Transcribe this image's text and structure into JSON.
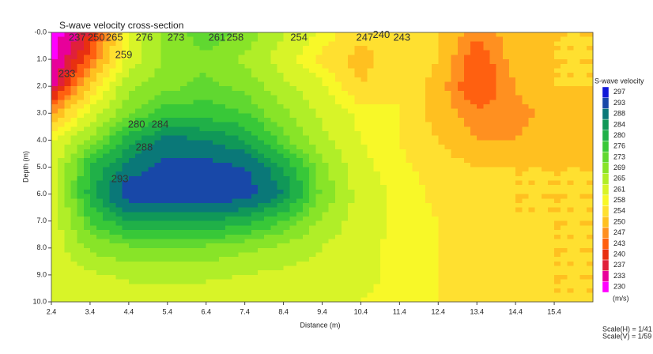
{
  "chart_data": {
    "type": "contour",
    "title": "S-wave velocity cross-section",
    "x_label": "Distance (m)",
    "y_label": "Depth (m)",
    "colorbar_title": "S-wave velocity",
    "unit_label": "(m/s)",
    "scale_h": "Scale(H) = 1/41",
    "scale_v": "Scale(V) = 1/59",
    "xlim": [
      2.4,
      16.4
    ],
    "ylim": [
      0,
      10
    ],
    "y_inverted": true,
    "xticks": [
      2.4,
      3.4,
      4.4,
      5.4,
      6.4,
      7.4,
      8.4,
      9.4,
      10.4,
      11.4,
      12.4,
      13.4,
      14.4,
      15.4
    ],
    "yticks": [
      {
        "value": 0,
        "label": "-0.0"
      },
      {
        "value": 1,
        "label": "1.0"
      },
      {
        "value": 2,
        "label": "2.0"
      },
      {
        "value": 3,
        "label": "3.0"
      },
      {
        "value": 4,
        "label": "4.0"
      },
      {
        "value": 5,
        "label": "5.0"
      },
      {
        "value": 6,
        "label": "6.0"
      },
      {
        "value": 7,
        "label": "7.0"
      },
      {
        "value": 8,
        "label": "8.0"
      },
      {
        "value": 9,
        "label": "9.0"
      },
      {
        "value": 10,
        "label": "10.0"
      }
    ],
    "x": [
      2.4,
      3.4,
      4.4,
      5.4,
      6.4,
      7.4,
      8.4,
      9.4,
      10.4,
      11.4,
      12.4,
      13.4,
      14.4,
      15.4,
      16.4
    ],
    "y": [
      0,
      1,
      2,
      3,
      4,
      5,
      6,
      7,
      8,
      9,
      10
    ],
    "z": [
      [
        230,
        240,
        262,
        270,
        276,
        272,
        265,
        260,
        255,
        256,
        254,
        248,
        252,
        254,
        254
      ],
      [
        232,
        245,
        262,
        270,
        272,
        268,
        263,
        257,
        252,
        258,
        254,
        244,
        252,
        254,
        254
      ],
      [
        235,
        255,
        268,
        272,
        274,
        272,
        266,
        262,
        254,
        258,
        252,
        243,
        250,
        254,
        254
      ],
      [
        250,
        262,
        272,
        278,
        278,
        276,
        270,
        264,
        260,
        258,
        252,
        248,
        249,
        251,
        254
      ],
      [
        260,
        270,
        282,
        290,
        288,
        284,
        274,
        266,
        261,
        258,
        254,
        250,
        250,
        252,
        254
      ],
      [
        262,
        280,
        290,
        295,
        295,
        293,
        284,
        270,
        262,
        259,
        256,
        254,
        254,
        254,
        254
      ],
      [
        262,
        282,
        297,
        297,
        297,
        296,
        288,
        272,
        263,
        260,
        257,
        255,
        254,
        254,
        254
      ],
      [
        262,
        276,
        284,
        284,
        284,
        282,
        276,
        268,
        263,
        260,
        258,
        256,
        254,
        254,
        254
      ],
      [
        262,
        270,
        272,
        272,
        272,
        270,
        268,
        265,
        262,
        260,
        258,
        257,
        255,
        254,
        254
      ],
      [
        262,
        264,
        266,
        266,
        266,
        265,
        264,
        263,
        262,
        260,
        258,
        257,
        255,
        254,
        254
      ],
      [
        262,
        262,
        262,
        262,
        262,
        262,
        262,
        262,
        261,
        260,
        258,
        257,
        255,
        254,
        254
      ]
    ],
    "levels": [
      230,
      233,
      237,
      240,
      243,
      247,
      250,
      254,
      258,
      261,
      265,
      269,
      273,
      276,
      280,
      284,
      288,
      293,
      297
    ],
    "colors": [
      "#ff00ff",
      "#e8009a",
      "#e0203a",
      "#e83010",
      "#ff6010",
      "#ff9020",
      "#ffc020",
      "#ffe030",
      "#f8f828",
      "#d8f428",
      "#b0ee28",
      "#88e428",
      "#60d830",
      "#38c838",
      "#20b048",
      "#109858",
      "#0a7878",
      "#1848a8",
      "#1018d8"
    ],
    "annotations": [
      {
        "text": "237",
        "x": 3.07,
        "y": 0.2
      },
      {
        "text": "250",
        "x": 3.56,
        "y": 0.2
      },
      {
        "text": "265",
        "x": 4.03,
        "y": 0.2
      },
      {
        "text": "276",
        "x": 4.8,
        "y": 0.2
      },
      {
        "text": "273",
        "x": 5.62,
        "y": 0.2
      },
      {
        "text": "261",
        "x": 6.68,
        "y": 0.2
      },
      {
        "text": "258",
        "x": 7.15,
        "y": 0.2
      },
      {
        "text": "254",
        "x": 8.8,
        "y": 0.2
      },
      {
        "text": "247",
        "x": 10.5,
        "y": 0.2
      },
      {
        "text": "240",
        "x": 10.93,
        "y": 0.1
      },
      {
        "text": "243",
        "x": 11.46,
        "y": 0.2
      },
      {
        "text": "259",
        "x": 4.27,
        "y": 0.85
      },
      {
        "text": "233",
        "x": 2.8,
        "y": 1.55
      },
      {
        "text": "280",
        "x": 4.6,
        "y": 3.43
      },
      {
        "text": "284",
        "x": 5.21,
        "y": 3.43
      },
      {
        "text": "288",
        "x": 4.8,
        "y": 4.28
      },
      {
        "text": "293",
        "x": 4.17,
        "y": 5.45
      }
    ]
  }
}
